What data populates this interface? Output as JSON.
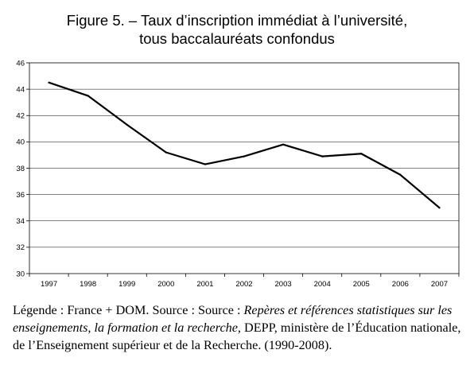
{
  "title_lines": [
    "Figure 5. – Taux d’inscription immédiat à l’université,",
    "tous baccalauréats confondus"
  ],
  "chart_data": {
    "type": "line",
    "title": "Figure 5. – Taux d’inscription immédiat à l’université, tous baccalauréats confondus",
    "xlabel": "",
    "ylabel": "",
    "categories": [
      "1997",
      "1998",
      "1999",
      "2000",
      "2001",
      "2002",
      "2003",
      "2004",
      "2005",
      "2006",
      "2007"
    ],
    "series": [
      {
        "values": [
          44.5,
          43.5,
          41.3,
          39.2,
          38.3,
          38.9,
          39.8,
          38.9,
          39.1,
          37.5,
          35.0
        ]
      }
    ],
    "ylim": [
      30,
      46
    ],
    "yticks": [
      "30",
      "32",
      "34",
      "36",
      "38",
      "40",
      "42",
      "44",
      "46"
    ],
    "grid": true,
    "legend": "none",
    "line_color": "#000000",
    "grid_color": "#000000",
    "plot_background": "#ffffff"
  },
  "caption": {
    "lead": "Légende : France + DOM. Source : Source : ",
    "italic": "Repères et références statistiques sur les enseignements, la formation et la recherche,",
    "tail": " DEPP, ministère de l’Éducation nationale, de l’Enseignement supérieur et de la Recherche. (1990-2008)."
  }
}
